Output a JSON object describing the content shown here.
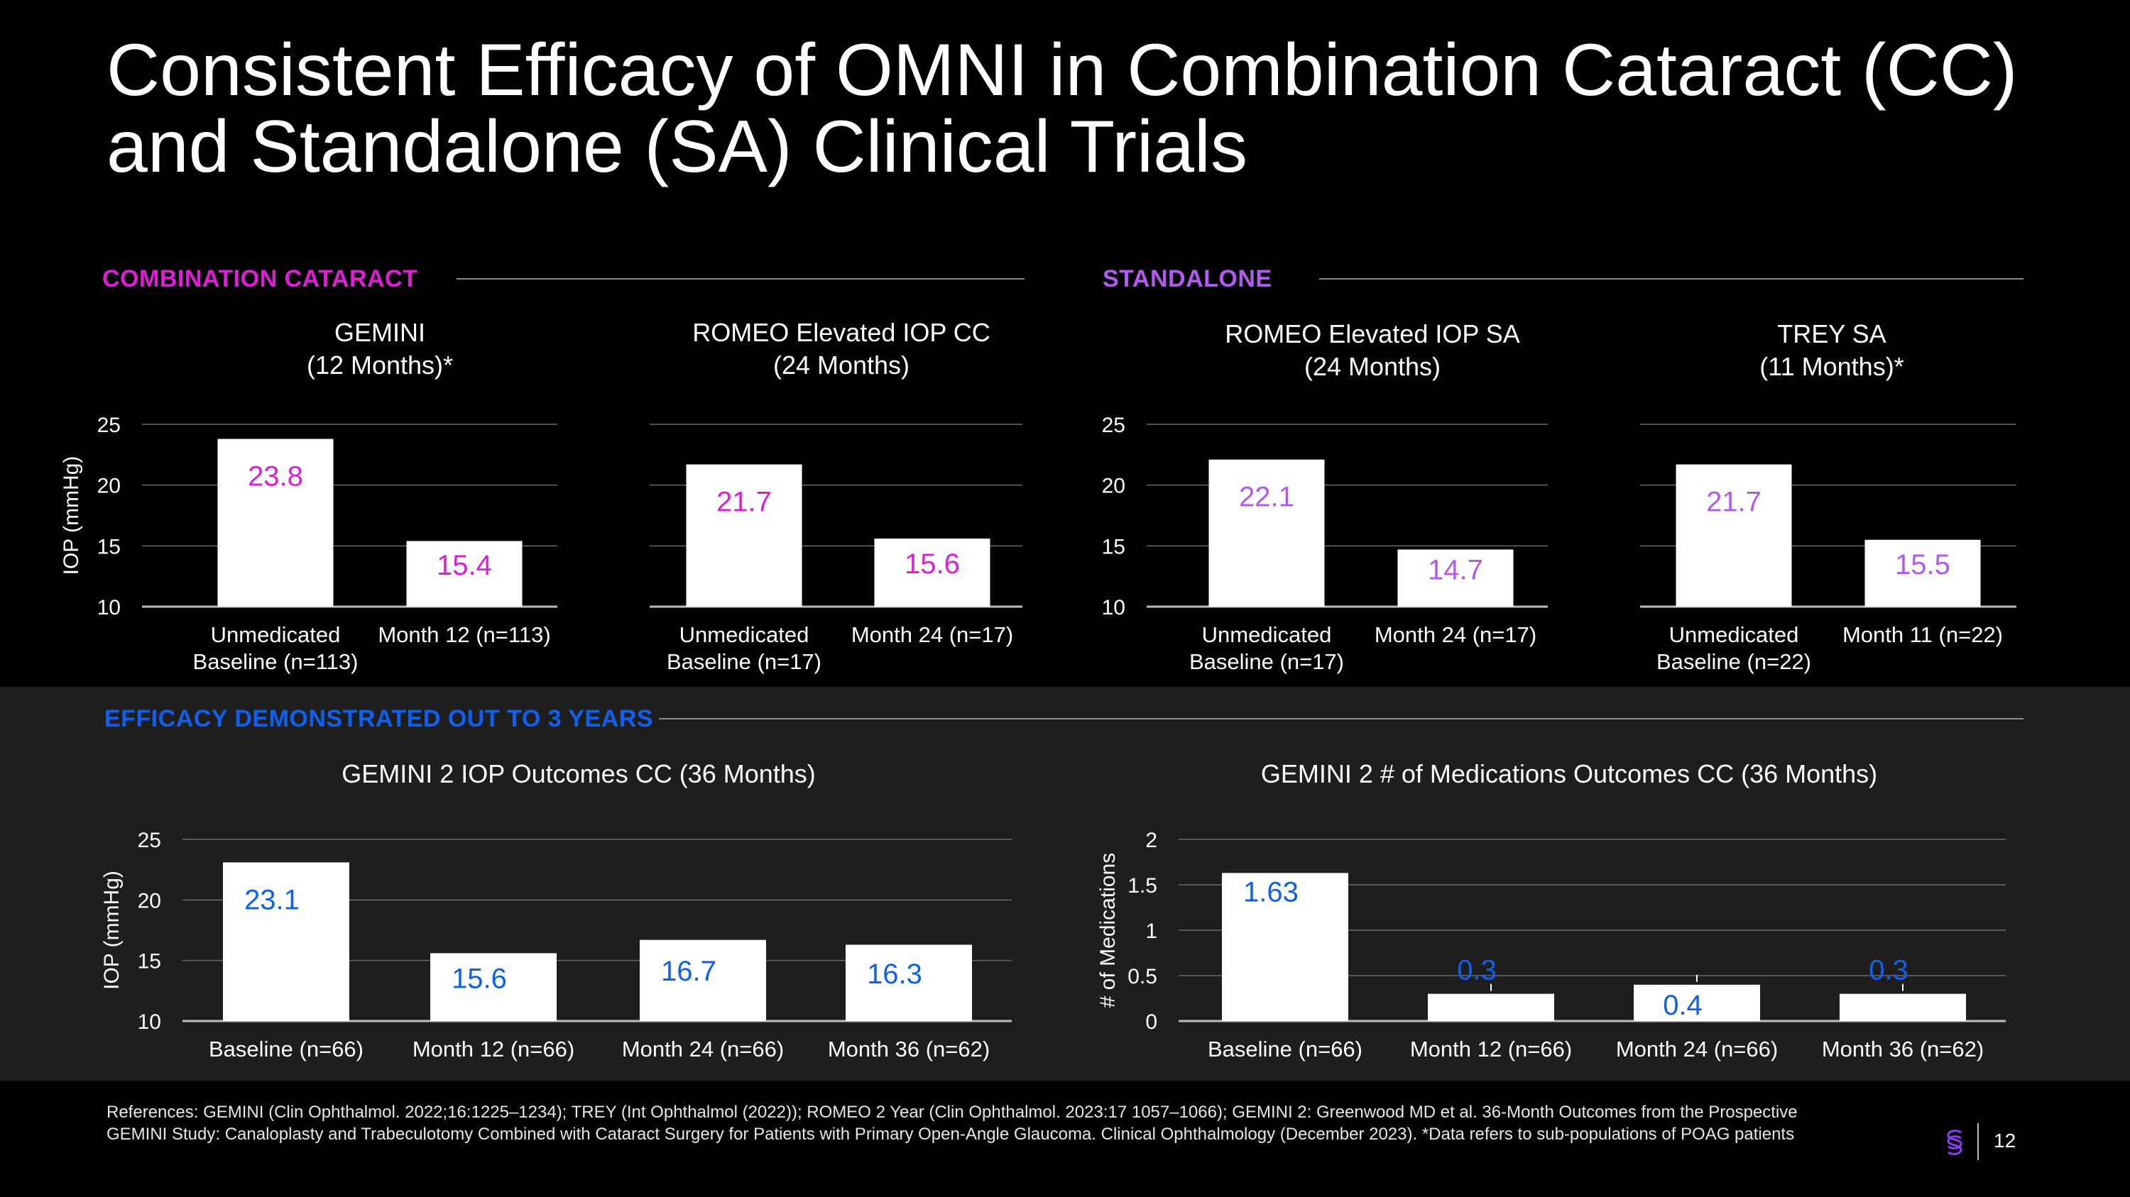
{
  "title": {
    "line1": "Consistent Efficacy of OMNI in Combination Cataract (CC)",
    "line2": "and Standalone (SA) Clinical Trials"
  },
  "colors": {
    "magenta": "#e11cd6",
    "purple": "#b25af0",
    "blue": "#1060f0",
    "bar": "#ffffff",
    "grid": "#6a6a6a"
  },
  "sections": {
    "combination": "COMBINATION CATARACT",
    "standalone": "STANDALONE",
    "efficacy": "EFFICACY DEMONSTRATED OUT TO 3 YEARS"
  },
  "chart_data": [
    {
      "id": "gemini",
      "type": "bar",
      "title_lines": [
        "GEMINI",
        "(12 Months)*"
      ],
      "ylabel": "IOP (mmHg)",
      "ylim": [
        10,
        25
      ],
      "yticks": [
        "10",
        "15",
        "20",
        "25"
      ],
      "categories": [
        [
          "Unmedicated",
          "Baseline (n=113)"
        ],
        [
          "Month 12 (n=113)"
        ]
      ],
      "values": [
        23.8,
        15.4
      ],
      "data_labels": [
        "23.8",
        "15.4"
      ],
      "label_color": "#e11cd6",
      "grid": true
    },
    {
      "id": "romeo_cc",
      "type": "bar",
      "title_lines": [
        "ROMEO Elevated IOP CC",
        "(24 Months)"
      ],
      "ylabel": "",
      "ylim": [
        10,
        25
      ],
      "yticks": [],
      "categories": [
        [
          "Unmedicated",
          "Baseline (n=17)"
        ],
        [
          "Month 24 (n=17)"
        ]
      ],
      "values": [
        21.7,
        15.6
      ],
      "data_labels": [
        "21.7",
        "15.6"
      ],
      "label_color": "#e11cd6",
      "grid": true
    },
    {
      "id": "romeo_sa",
      "type": "bar",
      "title_lines": [
        "ROMEO Elevated IOP SA",
        "(24 Months)"
      ],
      "ylabel": "",
      "ylim": [
        10,
        25
      ],
      "yticks": [
        "10",
        "15",
        "20",
        "25"
      ],
      "categories": [
        [
          "Unmedicated",
          "Baseline (n=17)"
        ],
        [
          "Month 24 (n=17)"
        ]
      ],
      "values": [
        22.1,
        14.7
      ],
      "data_labels": [
        "22.1",
        "14.7"
      ],
      "label_color": "#b25af0",
      "grid": true
    },
    {
      "id": "trey_sa",
      "type": "bar",
      "title_lines": [
        "TREY SA",
        "(11 Months)*"
      ],
      "ylabel": "",
      "ylim": [
        10,
        25
      ],
      "yticks": [],
      "categories": [
        [
          "Unmedicated",
          "Baseline (n=22)"
        ],
        [
          "Month 11 (n=22)"
        ]
      ],
      "values": [
        21.7,
        15.5
      ],
      "data_labels": [
        "21.7",
        "15.5"
      ],
      "label_color": "#b25af0",
      "grid": true
    },
    {
      "id": "gemini2_iop",
      "type": "bar",
      "title_lines": [
        "GEMINI 2 IOP Outcomes CC (36 Months)"
      ],
      "ylabel": "IOP (mmHg)",
      "ylim": [
        10,
        25
      ],
      "yticks": [
        "10",
        "15",
        "20",
        "25"
      ],
      "categories": [
        [
          "Baseline (n=66)"
        ],
        [
          "Month 12 (n=66)"
        ],
        [
          "Month 24 (n=66)"
        ],
        [
          "Month 36 (n=62)"
        ]
      ],
      "values": [
        23.1,
        15.6,
        16.7,
        16.3
      ],
      "data_labels": [
        "23.1",
        "15.6",
        "16.7",
        "16.3"
      ],
      "label_color": "#1060f0",
      "grid": true
    },
    {
      "id": "gemini2_meds",
      "type": "bar",
      "title_lines": [
        "GEMINI 2 # of Medications Outcomes CC (36 Months)"
      ],
      "ylabel": "# of Medications",
      "ylim": [
        0,
        2
      ],
      "yticks": [
        "0",
        "0.5",
        "1",
        "1.5",
        "2"
      ],
      "categories": [
        [
          "Baseline (n=66)"
        ],
        [
          "Month 12 (n=66)"
        ],
        [
          "Month 24 (n=66)"
        ],
        [
          "Month 36 (n=62)"
        ]
      ],
      "values": [
        1.63,
        0.3,
        0.4,
        0.3
      ],
      "data_labels": [
        "1.63",
        "0.3",
        "0.4",
        "0.3"
      ],
      "label_color": "#1060f0",
      "grid": true
    }
  ],
  "footer": {
    "references": "References: GEMINI (Clin Ophthalmol. 2022;16:1225–1234); TREY (Int Ophthalmol (2022)); ROMEO 2 Year (Clin Ophthalmol. 2023:17 1057–1066); GEMINI 2: Greenwood MD et al. 36-Month Outcomes from the Prospective GEMINI Study: Canaloplasty and Trabeculotomy Combined with Cataract Surgery for Patients with Primary Open-Angle Glaucoma. Clinical Ophthalmology (December 2023). *Data refers to sub-populations of POAG patients",
    "page_number": "12",
    "logo_icon": "company-logo-icon"
  }
}
